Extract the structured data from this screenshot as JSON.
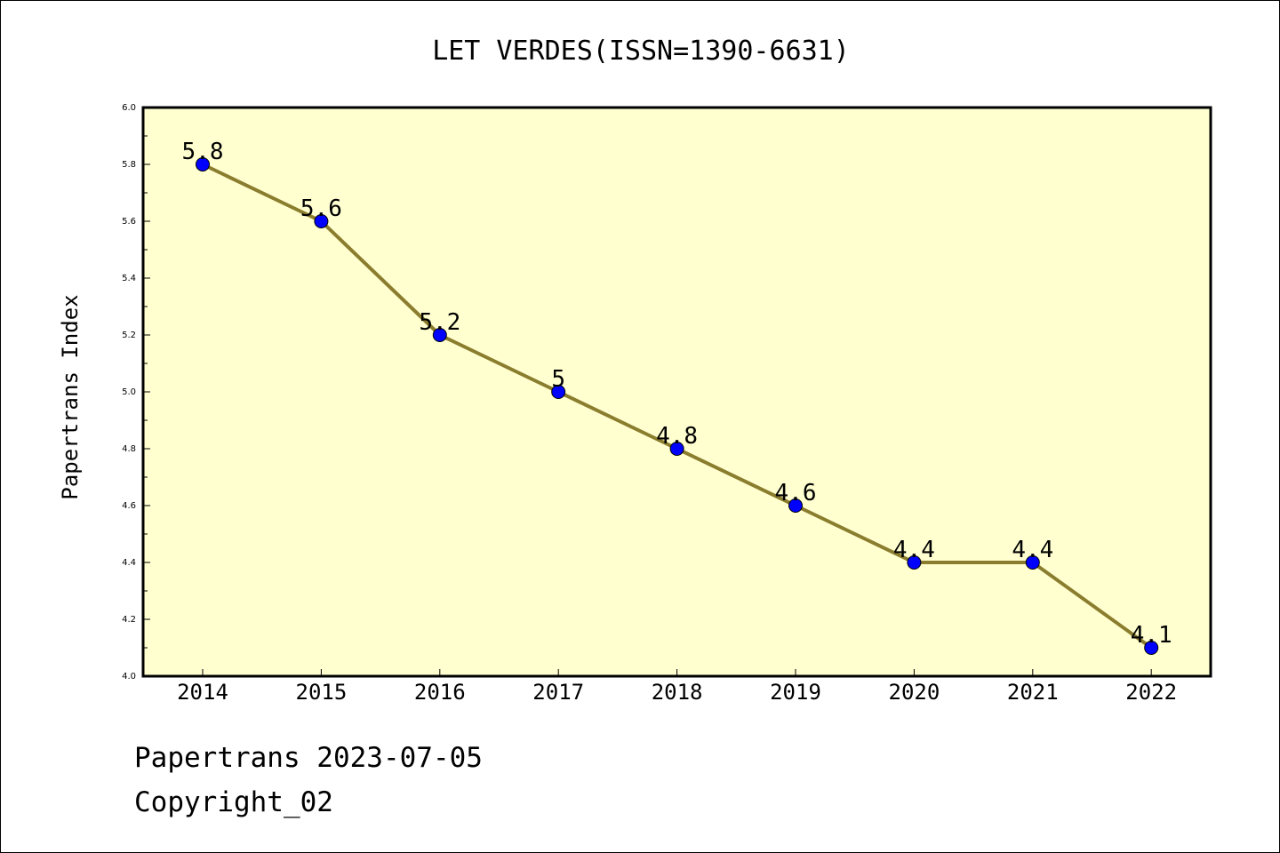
{
  "chart_data": {
    "type": "line",
    "title": "LET VERDES(ISSN=1390-6631)",
    "xlabel": "",
    "ylabel": "Papertrans Index",
    "categories": [
      "2014",
      "2015",
      "2016",
      "2017",
      "2018",
      "2019",
      "2020",
      "2021",
      "2022"
    ],
    "series": [
      {
        "values": [
          5.8,
          5.6,
          5.2,
          5.0,
          4.8,
          4.6,
          4.4,
          4.4,
          4.1
        ],
        "data_labels": [
          "5.8",
          "5.6",
          "5.2",
          "5",
          "4.8",
          "4.6",
          "4.4",
          "4.4",
          "4.1"
        ]
      }
    ],
    "ylim": [
      4.0,
      6.0
    ],
    "yticks": [
      "4.0",
      "4.2",
      "4.4",
      "4.6",
      "4.8",
      "5.0",
      "5.2",
      "5.4",
      "5.6",
      "5.8",
      "6.0"
    ],
    "grid": false,
    "colors": {
      "plot_background": "#ffffd0",
      "line": "#8b7d2e",
      "marker": "#0000ff"
    }
  },
  "footer": {
    "date_line": "Papertrans 2023-07-05",
    "copyright_line": "Copyright_02"
  }
}
